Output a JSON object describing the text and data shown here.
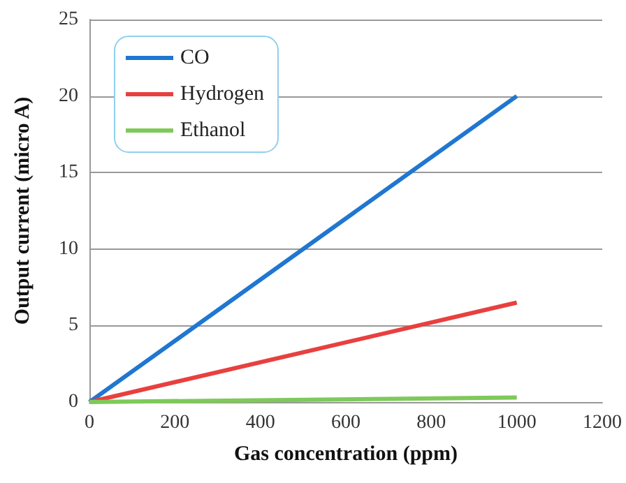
{
  "chart_data": {
    "type": "line",
    "xlabel": "Gas concentration (ppm)",
    "ylabel": "Output current (micro A)",
    "x": [
      0,
      1000
    ],
    "series": [
      {
        "name": "CO",
        "color": "#1f77d0",
        "values": [
          0,
          20
        ]
      },
      {
        "name": "Hydrogen",
        "color": "#e8403f",
        "values": [
          0,
          6.5
        ]
      },
      {
        "name": "Ethanol",
        "color": "#7ec95a",
        "values": [
          0,
          0.3
        ]
      }
    ],
    "xlim": [
      0,
      1200
    ],
    "xticks": [
      0,
      200,
      400,
      600,
      800,
      1000,
      1200
    ],
    "ylim": [
      0,
      25
    ],
    "yticks": [
      0,
      5,
      10,
      15,
      20,
      25
    ],
    "grid": "y",
    "legend": "top left",
    "marker": "none",
    "line_style": "solid"
  }
}
